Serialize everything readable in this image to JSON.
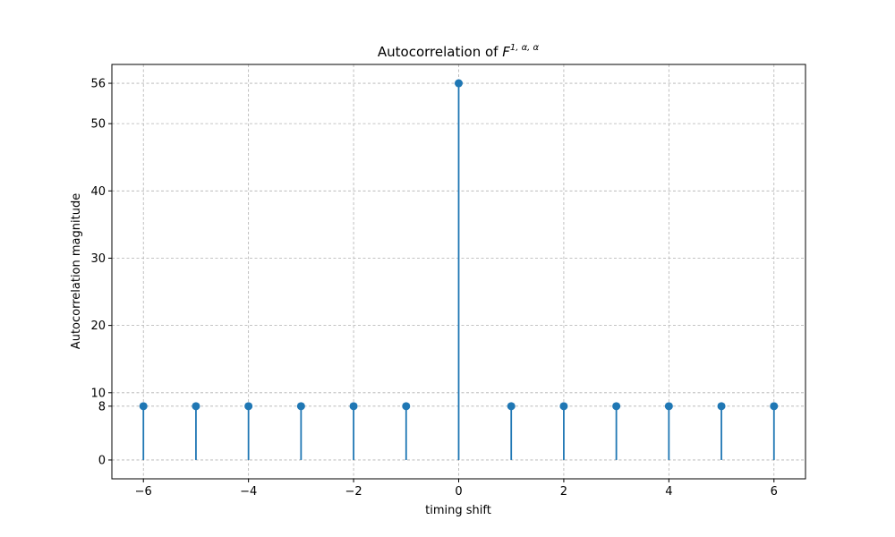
{
  "chart_data": {
    "type": "stem",
    "title": "Autocorrelation  of ",
    "title_math": "F",
    "title_superscript": "1, α, α",
    "xlabel": "timing shift",
    "ylabel": "Autocorrelation  magnitude",
    "x": [
      -6,
      -5,
      -4,
      -3,
      -2,
      -1,
      0,
      1,
      2,
      3,
      4,
      5,
      6
    ],
    "values": [
      8,
      8,
      8,
      8,
      8,
      8,
      56,
      8,
      8,
      8,
      8,
      8,
      8
    ],
    "color": "#1f77b4",
    "xlim": [
      -6.6,
      6.6
    ],
    "xticks": [
      {
        "value": -6,
        "label": "−6"
      },
      {
        "value": -4,
        "label": "−4"
      },
      {
        "value": -2,
        "label": "−2"
      },
      0,
      2,
      4,
      6
    ],
    "ylim": [
      -2.8,
      58.8
    ],
    "yticks": [
      0,
      8,
      10,
      20,
      30,
      40,
      50,
      56
    ],
    "grid": true
  }
}
